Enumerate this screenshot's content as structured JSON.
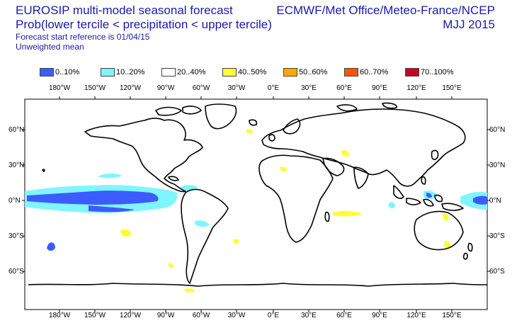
{
  "header": {
    "title": "EUROSIP multi-model seasonal forecast",
    "subtitle": "Prob(lower tercile < precipitation < upper tercile)",
    "start_reference": "Forecast start reference is 01/04/15",
    "mean_type": "Unweighted mean",
    "source": "ECMWF/Met Office/Meteo-France/NCEP",
    "period": "MJJ 2015"
  },
  "legend": [
    {
      "label": "0..10%",
      "color": "#3c5cff"
    },
    {
      "label": "10..20%",
      "color": "#7ff5ff"
    },
    {
      "label": "20..40%",
      "color": "#ffffff"
    },
    {
      "label": "40..50%",
      "color": "#ffff33"
    },
    {
      "label": "50..60%",
      "color": "#ffaa00"
    },
    {
      "label": "60..70%",
      "color": "#ff5500"
    },
    {
      "label": "70..100%",
      "color": "#cc0022"
    }
  ],
  "axes": {
    "lon_labels": [
      "180°W",
      "150°W",
      "120°W",
      "90°W",
      "60°W",
      "30°W",
      "0°E",
      "30°E",
      "60°E",
      "90°E",
      "120°E",
      "150°E"
    ],
    "lat_labels": [
      "60°N",
      "30°N",
      "0°N",
      "30°S",
      "60°S"
    ]
  }
}
